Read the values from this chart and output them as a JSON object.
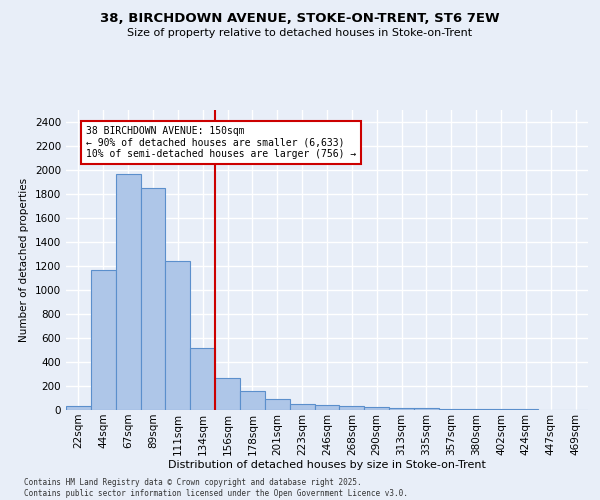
{
  "title_line1": "38, BIRCHDOWN AVENUE, STOKE-ON-TRENT, ST6 7EW",
  "title_line2": "Size of property relative to detached houses in Stoke-on-Trent",
  "xlabel": "Distribution of detached houses by size in Stoke-on-Trent",
  "ylabel": "Number of detached properties",
  "footnote1": "Contains HM Land Registry data © Crown copyright and database right 2025.",
  "footnote2": "Contains public sector information licensed under the Open Government Licence v3.0.",
  "categories": [
    "22sqm",
    "44sqm",
    "67sqm",
    "89sqm",
    "111sqm",
    "134sqm",
    "156sqm",
    "178sqm",
    "201sqm",
    "223sqm",
    "246sqm",
    "268sqm",
    "290sqm",
    "313sqm",
    "335sqm",
    "357sqm",
    "380sqm",
    "402sqm",
    "424sqm",
    "447sqm",
    "469sqm"
  ],
  "values": [
    30,
    1170,
    1970,
    1850,
    1240,
    520,
    270,
    155,
    90,
    50,
    40,
    35,
    25,
    20,
    15,
    10,
    8,
    5,
    5,
    3,
    3
  ],
  "bar_color": "#aec6e8",
  "bar_edge_color": "#5b8fcc",
  "bg_color": "#e8eef8",
  "grid_color": "#ffffff",
  "vline_color": "#cc0000",
  "annotation_text": "38 BIRCHDOWN AVENUE: 150sqm\n← 90% of detached houses are smaller (6,633)\n10% of semi-detached houses are larger (756) →",
  "annotation_box_color": "#ffffff",
  "annotation_box_edge": "#cc0000",
  "ylim": [
    0,
    2500
  ],
  "yticks": [
    0,
    200,
    400,
    600,
    800,
    1000,
    1200,
    1400,
    1600,
    1800,
    2000,
    2200,
    2400
  ],
  "title1_fontsize": 9.5,
  "title2_fontsize": 8.0,
  "ylabel_fontsize": 7.5,
  "xlabel_fontsize": 8.0,
  "tick_fontsize": 7.5,
  "annot_fontsize": 7.0,
  "footnote_fontsize": 5.5
}
